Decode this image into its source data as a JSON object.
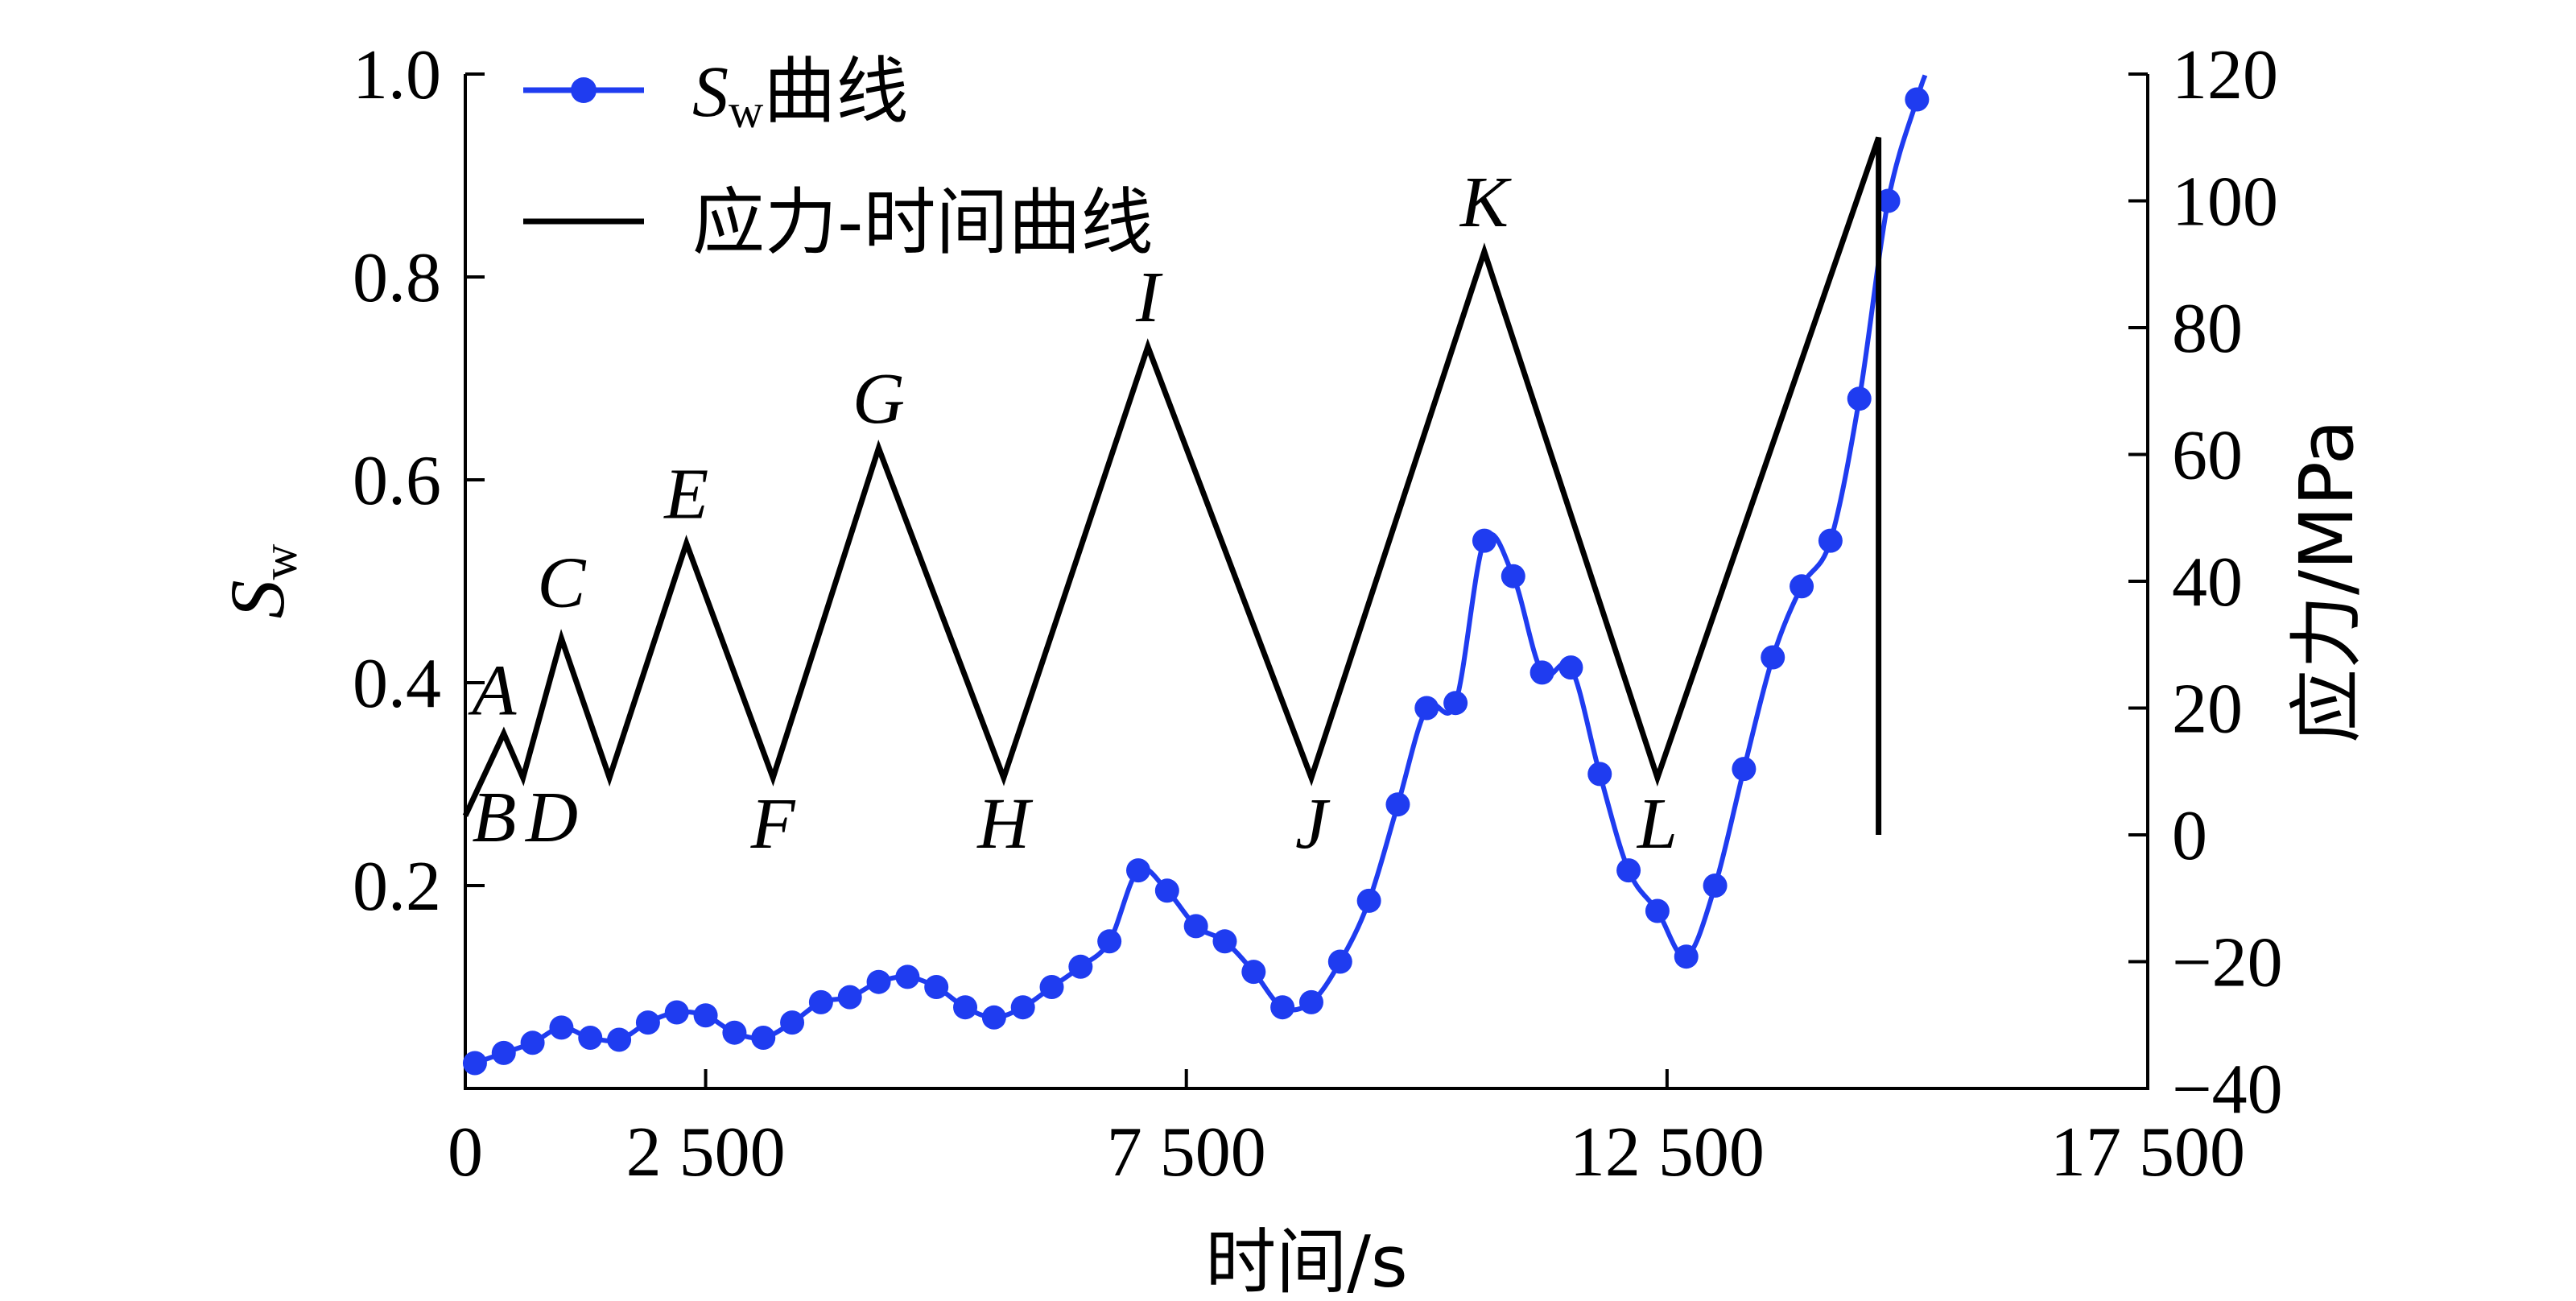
{
  "chart_data": {
    "type": "line",
    "xlabel": "时间/s",
    "ylabel_main": "S",
    "ylabel_sub": "w",
    "ylabel_right": "应力/MPa",
    "xlim": [
      0,
      17500
    ],
    "ylim_left": [
      0.0,
      1.0
    ],
    "ylim_right": [
      -40,
      120
    ],
    "x_ticks": [
      0,
      2500,
      7500,
      12500,
      17500
    ],
    "x_tick_labels": [
      "0",
      "2 500",
      "7 500",
      "12 500",
      "17 500"
    ],
    "y_left_ticks": [
      0.2,
      0.4,
      0.6,
      0.8,
      1.0
    ],
    "y_left_tick_labels": [
      "0.2",
      "0.4",
      "0.6",
      "0.8",
      "1.0"
    ],
    "y_right_ticks": [
      -40,
      -20,
      0,
      20,
      40,
      60,
      80,
      100,
      120
    ],
    "y_right_tick_labels": [
      "−40",
      "−20",
      "0",
      "20",
      "40",
      "60",
      "80",
      "100",
      "120"
    ],
    "legend": {
      "placement": "top-left",
      "entries": [
        {
          "main": "S",
          "sub": "w",
          "suffix": "曲线"
        },
        {
          "main": "应力-时间曲线",
          "sub": "",
          "suffix": ""
        }
      ]
    },
    "colors": {
      "sw": "#1f3cf0",
      "stress": "#000000"
    },
    "series": [
      {
        "id": "sw",
        "axis": "left",
        "x": [
          100,
          400,
          700,
          1000,
          1300,
          1600,
          1900,
          2200,
          2500,
          2800,
          3100,
          3400,
          3700,
          4000,
          4300,
          4600,
          4900,
          5200,
          5500,
          5800,
          6100,
          6400,
          6700,
          7000,
          7300,
          7600,
          7900,
          8200,
          8500,
          8800,
          9100,
          9400,
          9700,
          10000,
          10300,
          10600,
          10900,
          11200,
          11500,
          11800,
          12100,
          12400,
          12700,
          13000,
          13300,
          13600,
          13900,
          14200,
          14500,
          14800,
          15100
        ],
        "y": [
          0.025,
          0.035,
          0.045,
          0.06,
          0.05,
          0.048,
          0.065,
          0.075,
          0.072,
          0.055,
          0.05,
          0.065,
          0.085,
          0.09,
          0.105,
          0.11,
          0.1,
          0.08,
          0.07,
          0.08,
          0.1,
          0.12,
          0.145,
          0.215,
          0.195,
          0.16,
          0.145,
          0.115,
          0.08,
          0.085,
          0.125,
          0.185,
          0.28,
          0.375,
          0.38,
          0.54,
          0.505,
          0.41,
          0.415,
          0.31,
          0.215,
          0.175,
          0.13,
          0.2,
          0.315,
          0.425,
          0.495,
          0.54,
          0.68,
          0.875,
          0.975
        ]
      },
      {
        "id": "stress",
        "axis": "right",
        "x": [
          0,
          400,
          600,
          1000,
          1500,
          2300,
          3200,
          4300,
          5600,
          7100,
          8800,
          10600,
          12400,
          14700,
          14700
        ],
        "y": [
          3,
          16,
          9,
          31,
          9,
          46,
          9,
          61,
          9,
          77,
          9,
          92,
          9,
          110,
          0
        ]
      }
    ],
    "annotations": [
      {
        "text": "A",
        "x": 300,
        "y": 19
      },
      {
        "text": "B",
        "x": 300,
        "y": -1
      },
      {
        "text": "D",
        "x": 900,
        "y": -1
      },
      {
        "text": "C",
        "x": 1000,
        "y": 36
      },
      {
        "text": "E",
        "x": 2300,
        "y": 50
      },
      {
        "text": "F",
        "x": 3200,
        "y": -2
      },
      {
        "text": "G",
        "x": 4300,
        "y": 65
      },
      {
        "text": "H",
        "x": 5600,
        "y": -2
      },
      {
        "text": "I",
        "x": 7100,
        "y": 81
      },
      {
        "text": "J",
        "x": 8800,
        "y": -2
      },
      {
        "text": "K",
        "x": 10600,
        "y": 96
      },
      {
        "text": "L",
        "x": 12400,
        "y": -2
      }
    ]
  }
}
